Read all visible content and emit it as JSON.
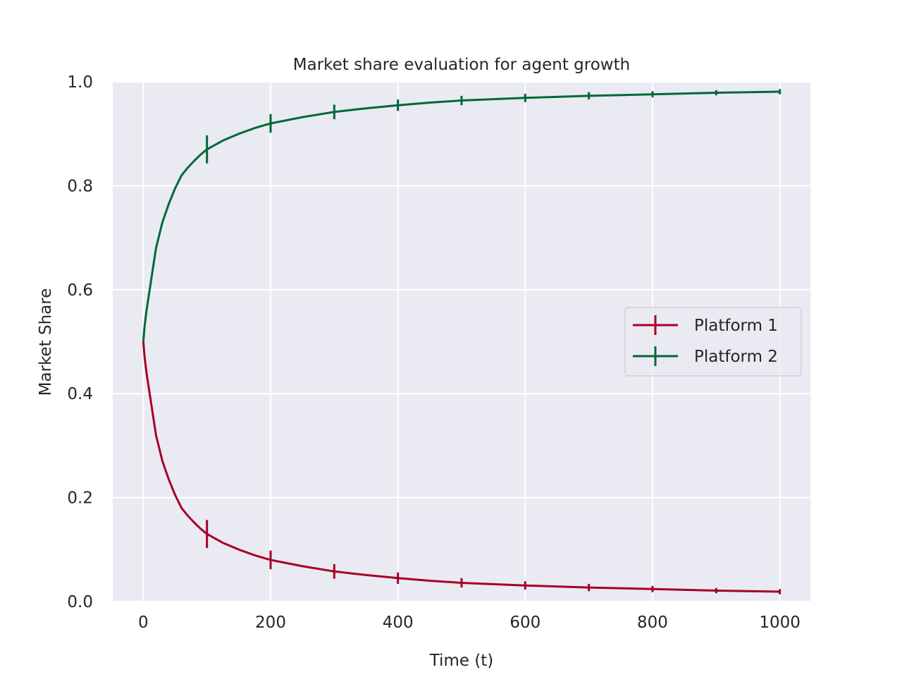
{
  "chart_data": {
    "type": "line",
    "title": "Market share evaluation for agent growth",
    "xlabel": "Time (t)",
    "ylabel": "Market Share",
    "xlim": [
      -48,
      1048
    ],
    "ylim": [
      0,
      1
    ],
    "xticks": [
      0,
      200,
      400,
      600,
      800,
      1000
    ],
    "yticks": [
      0.0,
      0.2,
      0.4,
      0.6,
      0.8,
      1.0
    ],
    "grid": true,
    "legend_position": "center-right",
    "series": [
      {
        "name": "Platform 1",
        "color": "#a50026",
        "x": [
          0,
          2,
          5,
          10,
          15,
          20,
          30,
          40,
          50,
          60,
          70,
          80,
          90,
          100,
          125,
          150,
          175,
          200,
          250,
          300,
          350,
          400,
          450,
          500,
          600,
          700,
          800,
          900,
          1000
        ],
        "y": [
          0.5,
          0.47,
          0.44,
          0.4,
          0.36,
          0.32,
          0.27,
          0.235,
          0.205,
          0.18,
          0.165,
          0.152,
          0.14,
          0.13,
          0.113,
          0.1,
          0.089,
          0.08,
          0.068,
          0.058,
          0.051,
          0.045,
          0.04,
          0.036,
          0.031,
          0.027,
          0.024,
          0.021,
          0.019
        ],
        "errorbars": {
          "x": [
            100,
            200,
            300,
            400,
            500,
            600,
            700,
            800,
            900,
            1000
          ],
          "y": [
            0.13,
            0.08,
            0.058,
            0.045,
            0.036,
            0.031,
            0.027,
            0.024,
            0.021,
            0.019
          ],
          "err": [
            0.027,
            0.018,
            0.014,
            0.011,
            0.009,
            0.008,
            0.007,
            0.006,
            0.005,
            0.005
          ]
        }
      },
      {
        "name": "Platform 2",
        "color": "#006837",
        "x": [
          0,
          2,
          5,
          10,
          15,
          20,
          30,
          40,
          50,
          60,
          70,
          80,
          90,
          100,
          125,
          150,
          175,
          200,
          250,
          300,
          350,
          400,
          450,
          500,
          600,
          700,
          800,
          900,
          1000
        ],
        "y": [
          0.5,
          0.53,
          0.56,
          0.6,
          0.64,
          0.68,
          0.73,
          0.765,
          0.795,
          0.82,
          0.835,
          0.848,
          0.86,
          0.87,
          0.887,
          0.9,
          0.911,
          0.92,
          0.932,
          0.942,
          0.949,
          0.955,
          0.96,
          0.964,
          0.969,
          0.973,
          0.976,
          0.979,
          0.981
        ],
        "errorbars": {
          "x": [
            100,
            200,
            300,
            400,
            500,
            600,
            700,
            800,
            900,
            1000
          ],
          "y": [
            0.87,
            0.92,
            0.942,
            0.955,
            0.964,
            0.969,
            0.973,
            0.976,
            0.979,
            0.981
          ],
          "err": [
            0.027,
            0.018,
            0.014,
            0.011,
            0.009,
            0.008,
            0.007,
            0.006,
            0.005,
            0.005
          ]
        }
      }
    ]
  },
  "colors": {
    "plot_background": "#eaeaf2",
    "grid": "#ffffff",
    "text": "#262626",
    "legend_border": "#cccccc"
  }
}
